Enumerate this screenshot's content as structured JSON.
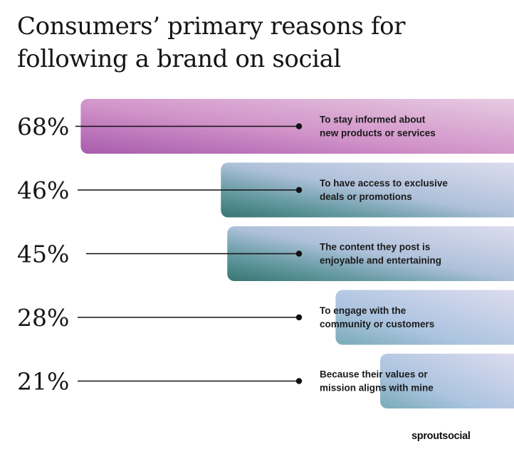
{
  "title": "Consumers’ primary reasons for\nfollowing a brand on social",
  "brand": "sproutsocial",
  "colors": {
    "text": "#151515",
    "purple_start": "#a24aa8",
    "purple_end": "#e6c9e1",
    "teal_start": "#0f6a66",
    "lavender_end": "#dcdbee"
  },
  "chart_data": {
    "type": "bar",
    "orientation": "horizontal",
    "value_format": "percent",
    "categories": [
      "To stay informed about new products or services",
      "To have access to exclusive deals or promotions",
      "The content they post is enjoyable and entertaining",
      "To engage with the community or customers",
      "Because their values or mission aligns with mine"
    ],
    "values": [
      68,
      46,
      45,
      28,
      21
    ],
    "labels": [
      [
        "To stay informed about",
        "new products or services"
      ],
      [
        "To have access to exclusive",
        "deals or promotions"
      ],
      [
        "The content they post is",
        "enjoyable and entertaining"
      ],
      [
        "To engage with the",
        "community or customers"
      ],
      [
        "Because their values or",
        "mission aligns with mine"
      ]
    ],
    "value_labels": [
      "68%",
      "46%",
      "45%",
      "28%",
      "21%"
    ],
    "grid": false,
    "legend": "none"
  }
}
